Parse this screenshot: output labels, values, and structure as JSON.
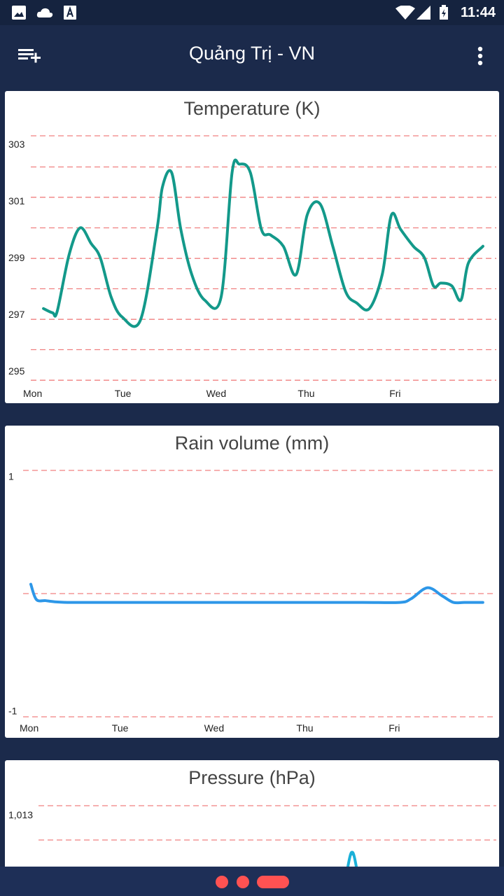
{
  "status_bar": {
    "time": "11:44",
    "left_icons": [
      "image-icon",
      "cloud-icon",
      "accessibility-icon"
    ],
    "right_icons": [
      "wifi-icon",
      "signal-icon",
      "battery-charging-icon"
    ]
  },
  "app_bar": {
    "title": "Quảng Trị - VN",
    "left_icon": "playlist-add-icon",
    "right_icon": "more-vert-icon"
  },
  "colors": {
    "background": "#1b2a4b",
    "temperature_line": "#13998a",
    "rain_line": "#2d97e8",
    "pressure_line": "#1ab0d8",
    "grid": "#f08080",
    "page_dot": "#ff5252"
  },
  "chart_data": [
    {
      "type": "line",
      "title": "Temperature (K)",
      "ylim": [
        294.6,
        303.3
      ],
      "yticks": [
        "303",
        "301",
        "299",
        "297",
        "295"
      ],
      "ytick_values": [
        303,
        301,
        299,
        297,
        295
      ],
      "grid_values": [
        303.3,
        302.2,
        301.13,
        300.05,
        298.97,
        297.9,
        296.82,
        295.75,
        294.67
      ],
      "xticks": [
        "Mon",
        "Tue",
        "Wed",
        "Thu",
        "Fri"
      ],
      "xlim": [
        0,
        5
      ],
      "x": [
        0.1,
        0.2,
        0.25,
        0.38,
        0.5,
        0.62,
        0.72,
        0.84,
        0.96,
        1.16,
        1.34,
        1.4,
        1.5,
        1.6,
        1.72,
        1.86,
        2.04,
        2.16,
        2.24,
        2.36,
        2.48,
        2.58,
        2.72,
        2.86,
        2.98,
        3.12,
        3.26,
        3.4,
        3.52,
        3.66,
        3.8,
        3.9,
        4.0,
        4.14,
        4.26,
        4.36,
        4.44,
        4.56,
        4.66,
        4.74,
        4.9
      ],
      "y": [
        297.2,
        297.05,
        297.1,
        299.1,
        300.05,
        299.5,
        299.0,
        297.6,
        296.9,
        296.8,
        300.0,
        301.5,
        302.0,
        300.0,
        298.4,
        297.5,
        297.6,
        302.0,
        302.3,
        302.0,
        300.0,
        299.8,
        299.4,
        298.4,
        300.5,
        300.9,
        299.4,
        297.8,
        297.4,
        297.2,
        298.4,
        300.5,
        300.0,
        299.4,
        299.0,
        298.0,
        298.1,
        298.0,
        297.5,
        298.8,
        299.4
      ]
    },
    {
      "type": "line",
      "title": "Rain volume (mm)",
      "ylim": [
        -1.05,
        1.05
      ],
      "yticks": [
        "1",
        "-1"
      ],
      "ytick_values": [
        1,
        -1
      ],
      "grid_values": [
        1.05,
        0.0,
        -1.05
      ],
      "xticks": [
        "Mon",
        "Tue",
        "Wed",
        "Thu",
        "Fri"
      ],
      "xlim": [
        0,
        5
      ],
      "x": [
        0.0,
        0.06,
        0.16,
        0.26,
        0.4,
        0.6,
        1.0,
        2.0,
        3.0,
        3.6,
        4.0,
        4.12,
        4.3,
        4.46,
        4.58,
        4.7,
        4.9
      ],
      "y": [
        0.08,
        -0.05,
        -0.06,
        -0.07,
        -0.075,
        -0.075,
        -0.075,
        -0.075,
        -0.075,
        -0.075,
        -0.075,
        -0.045,
        0.05,
        -0.02,
        -0.075,
        -0.075,
        -0.075
      ]
    },
    {
      "type": "line",
      "title": "Pressure (hPa)",
      "yticks": [
        "1,013"
      ],
      "ytick_values": [
        1013
      ],
      "xticks": [],
      "partial": true
    }
  ]
}
